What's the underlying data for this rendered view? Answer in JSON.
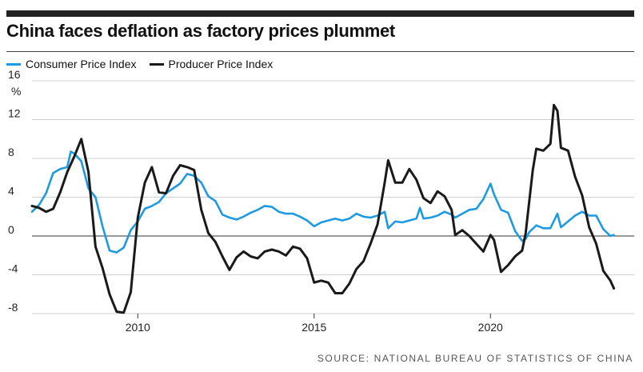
{
  "title": "China faces deflation as factory prices plummet",
  "source": "SOURCE: NATIONAL BUREAU OF STATISTICS OF CHINA",
  "colors": {
    "cpi": "#1e9be0",
    "ppi": "#1a1a1a",
    "grid": "#d0d0d0",
    "zero": "#333333"
  },
  "chart_data": {
    "type": "line",
    "title": "China faces deflation as factory prices plummet",
    "ylabel": "%",
    "ylim": [
      -8,
      16
    ],
    "yticks": [
      -8,
      -4,
      0,
      4,
      8,
      12,
      16
    ],
    "xlim": [
      2007.0,
      2023.6
    ],
    "xticks": [
      2010,
      2015,
      2020
    ],
    "legend": "top-left",
    "grid": true,
    "series": [
      {
        "name": "Consumer Price Index",
        "x": [
          2007.0,
          2007.2,
          2007.4,
          2007.6,
          2007.8,
          2008.0,
          2008.1,
          2008.2,
          2008.4,
          2008.6,
          2008.8,
          2009.0,
          2009.2,
          2009.4,
          2009.6,
          2009.8,
          2010.0,
          2010.2,
          2010.4,
          2010.6,
          2010.8,
          2011.0,
          2011.2,
          2011.4,
          2011.6,
          2011.8,
          2012.0,
          2012.2,
          2012.4,
          2012.6,
          2012.8,
          2013.0,
          2013.2,
          2013.4,
          2013.6,
          2013.8,
          2014.0,
          2014.2,
          2014.4,
          2014.6,
          2014.8,
          2015.0,
          2015.2,
          2015.4,
          2015.6,
          2015.8,
          2016.0,
          2016.2,
          2016.4,
          2016.6,
          2016.8,
          2017.0,
          2017.1,
          2017.3,
          2017.5,
          2017.7,
          2017.9,
          2018.0,
          2018.1,
          2018.3,
          2018.5,
          2018.7,
          2018.9,
          2019.0,
          2019.2,
          2019.4,
          2019.6,
          2019.8,
          2020.0,
          2020.1,
          2020.3,
          2020.5,
          2020.7,
          2020.9,
          2021.0,
          2021.1,
          2021.3,
          2021.5,
          2021.7,
          2021.9,
          2022.0,
          2022.2,
          2022.4,
          2022.6,
          2022.8,
          2023.0,
          2023.2,
          2023.4,
          2023.5
        ],
        "values": [
          2.5,
          3.2,
          4.4,
          6.5,
          6.9,
          7.1,
          8.7,
          8.5,
          7.7,
          4.9,
          4.0,
          1.0,
          -1.5,
          -1.7,
          -1.2,
          0.6,
          1.5,
          2.8,
          3.1,
          3.5,
          4.4,
          4.9,
          5.4,
          6.4,
          6.2,
          5.5,
          4.1,
          3.6,
          2.2,
          1.9,
          1.7,
          2.0,
          2.4,
          2.7,
          3.1,
          3.0,
          2.5,
          2.3,
          2.3,
          2.0,
          1.6,
          1.0,
          1.4,
          1.6,
          1.8,
          1.6,
          1.8,
          2.3,
          2.0,
          1.9,
          2.1,
          2.5,
          0.8,
          1.5,
          1.4,
          1.6,
          1.8,
          2.9,
          1.8,
          1.9,
          2.1,
          2.5,
          2.2,
          1.9,
          2.3,
          2.7,
          2.8,
          3.8,
          5.4,
          4.3,
          2.7,
          2.4,
          0.5,
          -0.5,
          -0.3,
          0.4,
          1.1,
          0.8,
          0.8,
          2.3,
          0.9,
          1.5,
          2.1,
          2.5,
          2.1,
          2.1,
          0.7,
          0.0,
          0.1
        ]
      },
      {
        "name": "Producer Price Index",
        "x": [
          2007.0,
          2007.2,
          2007.4,
          2007.6,
          2007.8,
          2008.0,
          2008.2,
          2008.4,
          2008.6,
          2008.8,
          2009.0,
          2009.2,
          2009.4,
          2009.6,
          2009.8,
          2010.0,
          2010.2,
          2010.4,
          2010.6,
          2010.8,
          2011.0,
          2011.2,
          2011.4,
          2011.6,
          2011.8,
          2012.0,
          2012.2,
          2012.4,
          2012.6,
          2012.8,
          2013.0,
          2013.2,
          2013.4,
          2013.6,
          2013.8,
          2014.0,
          2014.2,
          2014.4,
          2014.6,
          2014.8,
          2015.0,
          2015.2,
          2015.4,
          2015.6,
          2015.8,
          2016.0,
          2016.2,
          2016.4,
          2016.6,
          2016.8,
          2017.0,
          2017.1,
          2017.3,
          2017.5,
          2017.7,
          2017.9,
          2018.1,
          2018.3,
          2018.5,
          2018.7,
          2018.9,
          2019.0,
          2019.2,
          2019.4,
          2019.6,
          2019.8,
          2020.0,
          2020.1,
          2020.3,
          2020.5,
          2020.7,
          2020.9,
          2021.0,
          2021.2,
          2021.3,
          2021.5,
          2021.7,
          2021.8,
          2021.9,
          2022.0,
          2022.2,
          2022.4,
          2022.6,
          2022.8,
          2023.0,
          2023.2,
          2023.4,
          2023.5
        ],
        "values": [
          3.1,
          2.9,
          2.5,
          2.8,
          4.5,
          6.6,
          8.2,
          10.0,
          6.6,
          -1.1,
          -3.3,
          -6.0,
          -7.8,
          -7.9,
          -5.8,
          1.9,
          5.5,
          7.1,
          4.5,
          4.4,
          6.2,
          7.3,
          7.1,
          6.8,
          2.7,
          0.3,
          -0.6,
          -2.1,
          -3.5,
          -2.2,
          -1.6,
          -2.1,
          -2.3,
          -1.6,
          -1.4,
          -1.6,
          -2.0,
          -1.1,
          -1.3,
          -2.3,
          -4.8,
          -4.6,
          -4.8,
          -5.9,
          -5.9,
          -4.9,
          -3.4,
          -2.6,
          -0.8,
          1.2,
          5.5,
          7.8,
          5.5,
          5.5,
          6.9,
          5.8,
          3.9,
          3.4,
          4.6,
          4.1,
          2.7,
          0.1,
          0.6,
          0.0,
          -0.8,
          -1.6,
          0.1,
          -0.4,
          -3.7,
          -3.0,
          -2.1,
          -1.5,
          0.3,
          6.8,
          9.0,
          8.8,
          9.5,
          13.5,
          12.9,
          9.1,
          8.8,
          6.1,
          4.2,
          0.9,
          -0.8,
          -3.6,
          -4.6,
          -5.4
        ]
      }
    ]
  }
}
